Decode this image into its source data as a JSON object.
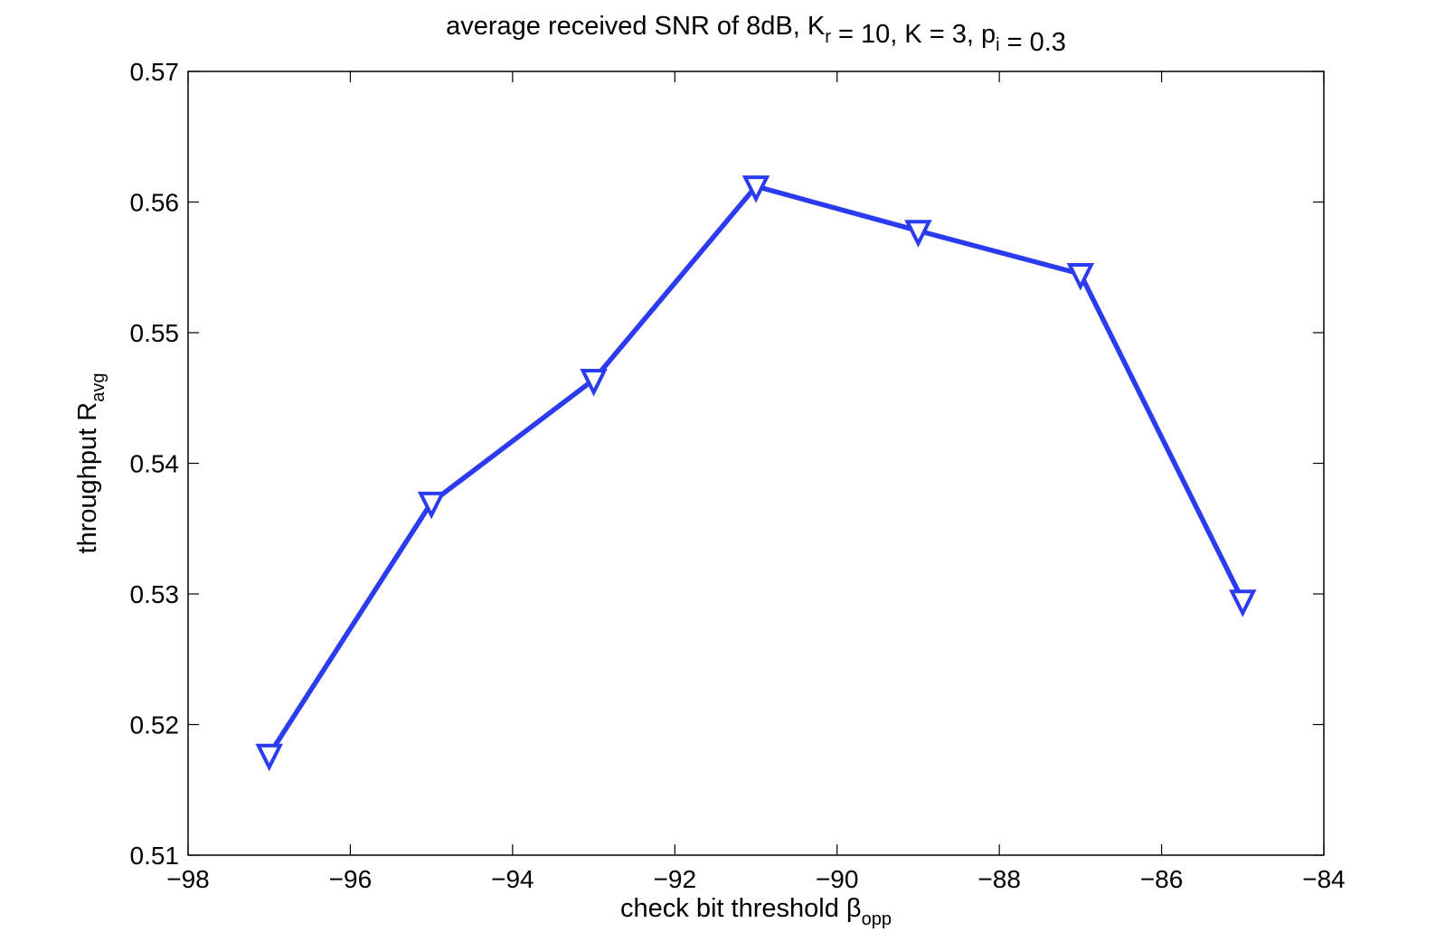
{
  "chart_data": {
    "type": "line",
    "title": {
      "parts": [
        {
          "text": "average received SNR of 8dB, K",
          "sub": false
        },
        {
          "text": "r",
          "sub": true
        },
        {
          "text": " = 10, K = 3, p",
          "sub": false
        },
        {
          "text": "i",
          "sub": true
        },
        {
          "text": " = 0.3",
          "sub": false
        }
      ]
    },
    "xlabel": {
      "parts": [
        {
          "text": "check bit threshold β",
          "sub": false
        },
        {
          "text": "opp",
          "sub": true
        }
      ]
    },
    "ylabel": {
      "parts": [
        {
          "text": "throughput R",
          "sub": false
        },
        {
          "text": "avg",
          "sub": true
        }
      ]
    },
    "xlim": [
      -98,
      -84
    ],
    "ylim": [
      0.51,
      0.57
    ],
    "xticks": [
      -98,
      -96,
      -94,
      -92,
      -90,
      -88,
      -86,
      -84
    ],
    "xtick_labels": [
      "−98",
      "−96",
      "−94",
      "−92",
      "−90",
      "−88",
      "−86",
      "−84"
    ],
    "yticks": [
      0.51,
      0.52,
      0.53,
      0.54,
      0.55,
      0.56,
      0.57
    ],
    "ytick_labels": [
      "0.51",
      "0.52",
      "0.53",
      "0.54",
      "0.55",
      "0.56",
      "0.57"
    ],
    "grid": false,
    "series": [
      {
        "color": "#2b3bef",
        "marker": "triangle-down",
        "x": [
          -97,
          -95,
          -93,
          -91,
          -89,
          -87,
          -85
        ],
        "y": [
          0.5177,
          0.537,
          0.5464,
          0.5612,
          0.5578,
          0.5545,
          0.5295
        ]
      }
    ]
  }
}
